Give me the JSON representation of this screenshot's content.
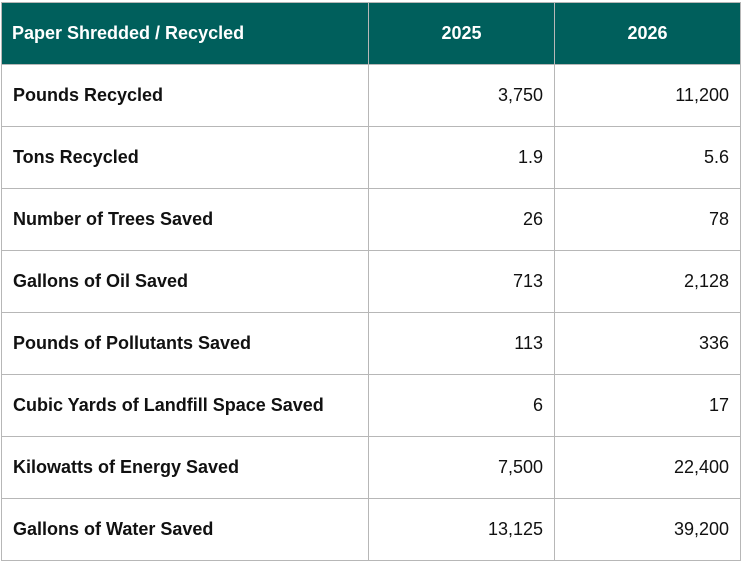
{
  "table": {
    "headers": [
      "Paper Shredded / Recycled",
      "2025",
      "2026"
    ],
    "rows": [
      {
        "label": "Pounds Recycled",
        "y2025": "3,750",
        "y2026": "11,200"
      },
      {
        "label": "Tons Recycled",
        "y2025": "1.9",
        "y2026": "5.6"
      },
      {
        "label": "Number of Trees Saved",
        "y2025": "26",
        "y2026": "78"
      },
      {
        "label": "Gallons of Oil Saved",
        "y2025": "713",
        "y2026": "2,128"
      },
      {
        "label": "Pounds of Pollutants Saved",
        "y2025": "113",
        "y2026": "336"
      },
      {
        "label": "Cubic Yards of Landfill Space Saved",
        "y2025": "6",
        "y2026": "17"
      },
      {
        "label": "Kilowatts of Energy Saved",
        "y2025": "7,500",
        "y2026": "22,400"
      },
      {
        "label": "Gallons of Water Saved",
        "y2025": "13,125",
        "y2026": "39,200"
      }
    ]
  },
  "colors": {
    "header_bg": "#005f5c",
    "header_text": "#ffffff",
    "border": "#b7b7b7"
  }
}
